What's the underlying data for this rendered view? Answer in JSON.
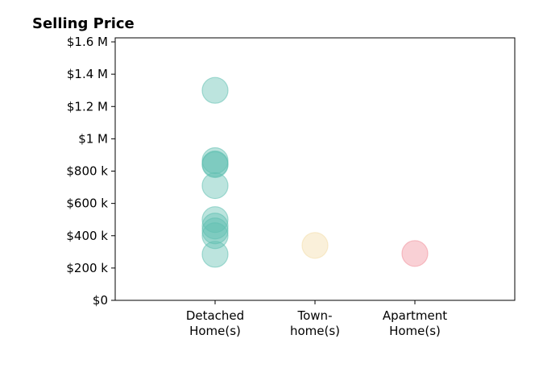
{
  "chart_data": {
    "type": "scatter",
    "title": "Selling Price",
    "xlabel": "",
    "ylabel": "",
    "categories": [
      [
        "Detached",
        "Home(s)"
      ],
      [
        "Town-",
        "home(s)"
      ],
      [
        "Apartment",
        "Home(s)"
      ]
    ],
    "xlim": [
      -1,
      3
    ],
    "ylim": [
      0,
      1625000
    ],
    "yticks": [
      0,
      200000,
      400000,
      600000,
      800000,
      1000000,
      1200000,
      1400000,
      1600000
    ],
    "ytick_labels": [
      "$0",
      "$200 k",
      "$400 k",
      "$600 k",
      "$800 k",
      "$1 M",
      "$1.2 M",
      "$1.4 M",
      "$1.6 M"
    ],
    "grid": false,
    "colors": [
      "#5fbfb0",
      "#f2dca8",
      "#f08f9a"
    ],
    "series": [
      {
        "category": 0,
        "values": [
          1300000,
          865000,
          845000,
          840000,
          710000,
          500000,
          460000,
          430000,
          400000,
          285000
        ]
      },
      {
        "category": 1,
        "values": [
          340000
        ]
      },
      {
        "category": 2,
        "values": [
          290000
        ]
      }
    ]
  }
}
